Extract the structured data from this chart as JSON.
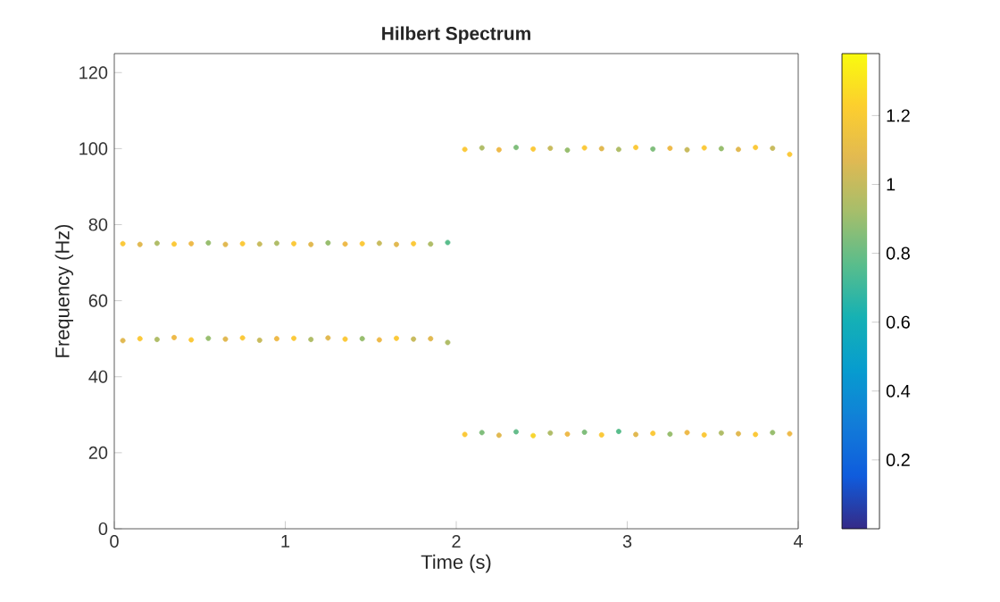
{
  "chart_data": {
    "type": "scatter",
    "title": "Hilbert Spectrum",
    "xlabel": "Time (s)",
    "ylabel": "Frequency (Hz)",
    "xlim": [
      0,
      4
    ],
    "ylim": [
      0,
      125
    ],
    "xticks": [
      0,
      1,
      2,
      3,
      4
    ],
    "yticks": [
      0,
      20,
      40,
      60,
      80,
      100,
      120
    ],
    "clim": [
      0,
      1.38
    ],
    "cticks": [
      0.2,
      0.4,
      0.6,
      0.8,
      1,
      1.2
    ],
    "marker": "circle",
    "grid": false,
    "series": [
      {
        "x": [
          0.05,
          0.15,
          0.25,
          0.35,
          0.45,
          0.55,
          0.65,
          0.75,
          0.85,
          0.95,
          1.05,
          1.15,
          1.25,
          1.35,
          1.45,
          1.55,
          1.65,
          1.75,
          1.85,
          1.95
        ],
        "values": [
          49.5,
          50,
          49.8,
          50.3,
          49.7,
          50.1,
          49.9,
          50.2,
          49.6,
          50,
          50.1,
          49.8,
          50.2,
          49.9,
          50,
          49.7,
          50.1,
          49.9,
          50,
          49
        ],
        "colors": [
          "#e1b952",
          "#fbc93a",
          "#b0bd68",
          "#eeba4a",
          "#fbc93a",
          "#98be6f",
          "#e1b952",
          "#fbc93a",
          "#c8bb5e",
          "#eeba4a",
          "#fbc93a",
          "#b0bd68",
          "#e1b952",
          "#fbc93a",
          "#98be6f",
          "#eeba4a",
          "#fbc93a",
          "#c8bb5e",
          "#e1b952",
          "#b0bd68"
        ]
      },
      {
        "x": [
          0.05,
          0.15,
          0.25,
          0.35,
          0.45,
          0.55,
          0.65,
          0.75,
          0.85,
          0.95,
          1.05,
          1.15,
          1.25,
          1.35,
          1.45,
          1.55,
          1.65,
          1.75,
          1.85,
          1.95
        ],
        "values": [
          75,
          74.8,
          75.1,
          74.9,
          75,
          75.2,
          74.8,
          75,
          74.9,
          75.1,
          75,
          74.8,
          75.2,
          74.9,
          75,
          75.1,
          74.8,
          75,
          74.9,
          75.3
        ],
        "colors": [
          "#fbc93a",
          "#e1b952",
          "#b0bd68",
          "#fbc93a",
          "#eeba4a",
          "#98be6f",
          "#e1b952",
          "#fbc93a",
          "#c8bb5e",
          "#b0bd68",
          "#fbc93a",
          "#e1b952",
          "#98be6f",
          "#eeba4a",
          "#fbc93a",
          "#c8bb5e",
          "#e1b952",
          "#fbc93a",
          "#b0bd68",
          "#59bd8c"
        ]
      },
      {
        "x": [
          2.05,
          2.15,
          2.25,
          2.35,
          2.45,
          2.55,
          2.65,
          2.75,
          2.85,
          2.95,
          3.05,
          3.15,
          3.25,
          3.35,
          3.45,
          3.55,
          3.65,
          3.75,
          3.85,
          3.95
        ],
        "values": [
          99.8,
          100.2,
          99.7,
          100.3,
          99.9,
          100.1,
          99.6,
          100.2,
          100,
          99.8,
          100.3,
          99.9,
          100.1,
          99.7,
          100.2,
          100,
          99.8,
          100.3,
          100.1,
          98.5
        ],
        "colors": [
          "#fbc93a",
          "#b0bd68",
          "#eeba4a",
          "#80be7c",
          "#fbc93a",
          "#c8bb5e",
          "#98be6f",
          "#fbc93a",
          "#e1b952",
          "#b0bd68",
          "#fbc93a",
          "#80be7c",
          "#eeba4a",
          "#c8bb5e",
          "#fbc93a",
          "#98be6f",
          "#e1b952",
          "#fbc93a",
          "#c8bb5e",
          "#fbc93a"
        ]
      },
      {
        "x": [
          2.05,
          2.15,
          2.25,
          2.35,
          2.45,
          2.55,
          2.65,
          2.75,
          2.85,
          2.95,
          3.05,
          3.15,
          3.25,
          3.35,
          3.45,
          3.55,
          3.65,
          3.75,
          3.85,
          3.95
        ],
        "values": [
          24.8,
          25.3,
          24.6,
          25.5,
          24.5,
          25.2,
          24.9,
          25.4,
          24.7,
          25.6,
          24.8,
          25.1,
          24.9,
          25.3,
          24.7,
          25.2,
          25,
          24.8,
          25.3,
          25
        ],
        "colors": [
          "#fbc93a",
          "#80be7c",
          "#e1b952",
          "#66bd8c",
          "#f7d530",
          "#b0bd68",
          "#eeba4a",
          "#80be7c",
          "#fbc93a",
          "#59bd8c",
          "#e1b952",
          "#fbc93a",
          "#98be6f",
          "#eeba4a",
          "#fbc93a",
          "#b0bd68",
          "#e1b952",
          "#fbc93a",
          "#98be6f",
          "#eeba4a"
        ]
      }
    ]
  }
}
